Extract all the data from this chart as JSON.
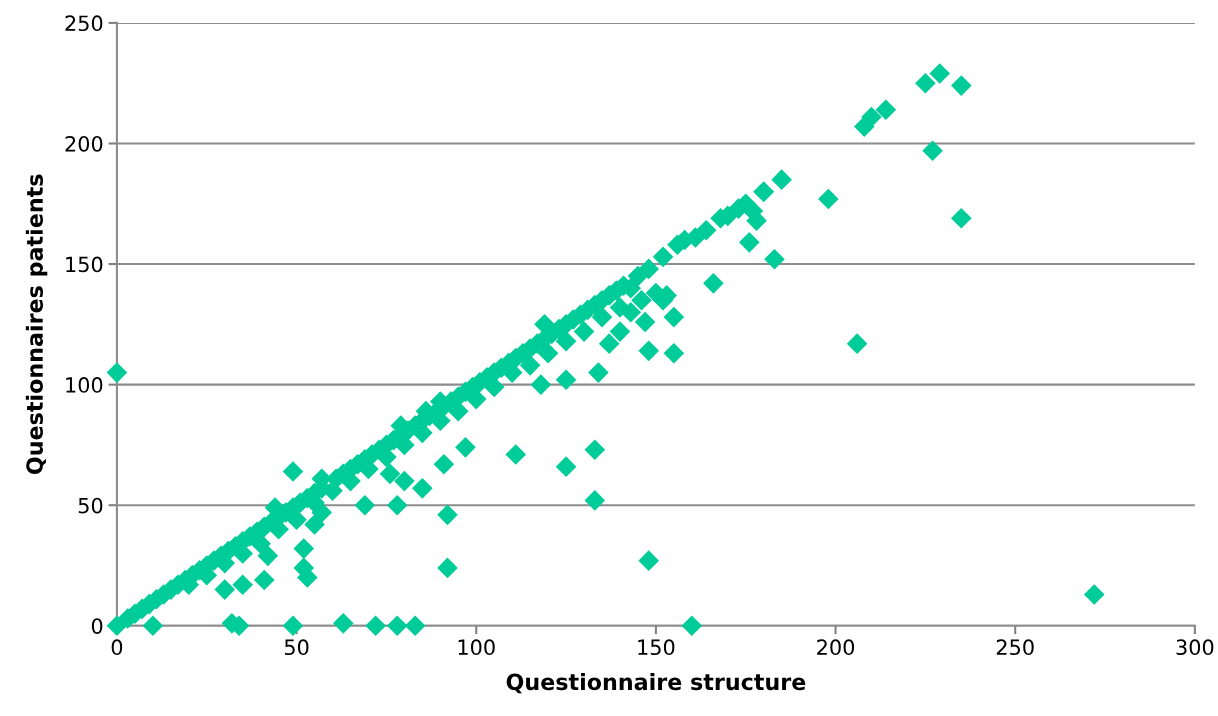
{
  "chart_data": {
    "type": "scatter",
    "xlabel": "Questionnaire structure",
    "ylabel": "Questionnaires patients",
    "xlim": [
      0,
      300
    ],
    "xticks": [
      0,
      50,
      100,
      150,
      200,
      250,
      300
    ],
    "ylim": [
      0,
      250
    ],
    "yticks": [
      0,
      50,
      100,
      150,
      200,
      250
    ],
    "grid": "y",
    "marker": "diamond",
    "series": [
      {
        "color": "#00cc99",
        "x": [
          0,
          0,
          10,
          32,
          34,
          49,
          63,
          72,
          78,
          83,
          160,
          272,
          148,
          92,
          53,
          52,
          30,
          35,
          41,
          42,
          52,
          55,
          57,
          49,
          76,
          78,
          69,
          92,
          80,
          85,
          91,
          97,
          111,
          125,
          133,
          133,
          118,
          125,
          134,
          148,
          155,
          147,
          155,
          137,
          140,
          146,
          152,
          166,
          176,
          183,
          198,
          206,
          227,
          235,
          208,
          210,
          214,
          225,
          229,
          235,
          180,
          178,
          3,
          5,
          7,
          9,
          11,
          13,
          15,
          17,
          19,
          21,
          23,
          25,
          27,
          29,
          31,
          33,
          35,
          37,
          39,
          41,
          43,
          45,
          47,
          49,
          51,
          53,
          55,
          57,
          61,
          63,
          65,
          67,
          69,
          71,
          73,
          75,
          77,
          79,
          81,
          83,
          85,
          87,
          89,
          91,
          93,
          95,
          97,
          99,
          101,
          103,
          105,
          107,
          109,
          111,
          113,
          115,
          117,
          119,
          121,
          123,
          125,
          127,
          129,
          131,
          133,
          135,
          137,
          139,
          141,
          143,
          145,
          148,
          152,
          156,
          158,
          161,
          164,
          168,
          170,
          173,
          175,
          177,
          180,
          185,
          20,
          25,
          30,
          35,
          40,
          45,
          50,
          55,
          60,
          65,
          70,
          75,
          80,
          85,
          90,
          95,
          100,
          105,
          110,
          115,
          120,
          125,
          130,
          135,
          140,
          143,
          150,
          153,
          57,
          79,
          86,
          90,
          119,
          44
        ],
        "values": [
          105,
          0,
          0,
          1,
          0,
          0,
          1,
          0,
          0,
          0,
          0,
          13,
          27,
          24,
          20,
          24,
          15,
          17,
          19,
          29,
          32,
          42,
          47,
          64,
          63,
          50,
          50,
          46,
          60,
          57,
          67,
          74,
          71,
          66,
          73,
          52,
          100,
          102,
          105,
          114,
          113,
          126,
          128,
          117,
          122,
          135,
          135,
          142,
          159,
          152,
          177,
          117,
          197,
          169,
          207,
          211,
          214,
          225,
          229,
          224,
          180,
          168,
          3,
          5,
          7,
          9,
          11,
          13,
          15,
          17,
          19,
          21,
          23,
          25,
          27,
          29,
          31,
          33,
          35,
          37,
          39,
          41,
          43,
          45,
          47,
          49,
          51,
          53,
          55,
          57,
          61,
          63,
          65,
          67,
          69,
          71,
          73,
          75,
          77,
          79,
          81,
          83,
          85,
          87,
          89,
          91,
          93,
          95,
          97,
          99,
          101,
          103,
          105,
          107,
          109,
          111,
          113,
          115,
          117,
          119,
          121,
          123,
          125,
          127,
          129,
          131,
          133,
          135,
          137,
          139,
          141,
          140,
          145,
          148,
          153,
          158,
          160,
          161,
          164,
          169,
          170,
          173,
          175,
          172,
          180,
          185,
          17,
          21,
          26,
          30,
          34,
          40,
          44,
          51,
          56,
          60,
          65,
          70,
          75,
          80,
          85,
          89,
          94,
          99,
          105,
          108,
          113,
          118,
          122,
          128,
          132,
          130,
          138,
          137,
          61,
          83,
          89,
          93,
          125,
          49
        ]
      }
    ]
  }
}
